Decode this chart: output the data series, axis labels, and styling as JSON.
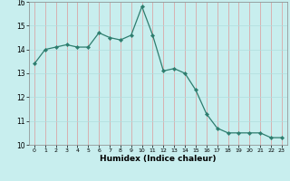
{
  "x": [
    0,
    1,
    2,
    3,
    4,
    5,
    6,
    7,
    8,
    9,
    10,
    11,
    12,
    13,
    14,
    15,
    16,
    17,
    18,
    19,
    20,
    21,
    22,
    23
  ],
  "y": [
    13.4,
    14.0,
    14.1,
    14.2,
    14.1,
    14.1,
    14.7,
    14.5,
    14.4,
    14.6,
    15.8,
    14.6,
    13.1,
    13.2,
    13.0,
    12.3,
    11.3,
    10.7,
    10.5,
    10.5,
    10.5,
    10.5,
    10.3,
    10.3
  ],
  "xlim": [
    -0.5,
    23.5
  ],
  "ylim": [
    10,
    16
  ],
  "yticks": [
    10,
    11,
    12,
    13,
    14,
    15,
    16
  ],
  "xticks": [
    0,
    1,
    2,
    3,
    4,
    5,
    6,
    7,
    8,
    9,
    10,
    11,
    12,
    13,
    14,
    15,
    16,
    17,
    18,
    19,
    20,
    21,
    22,
    23
  ],
  "xlabel": "Humidex (Indice chaleur)",
  "line_color": "#2d7d6e",
  "marker_color": "#2d7d6e",
  "bg_color": "#c8eeee",
  "grid_color": "#b0dddd",
  "title": ""
}
